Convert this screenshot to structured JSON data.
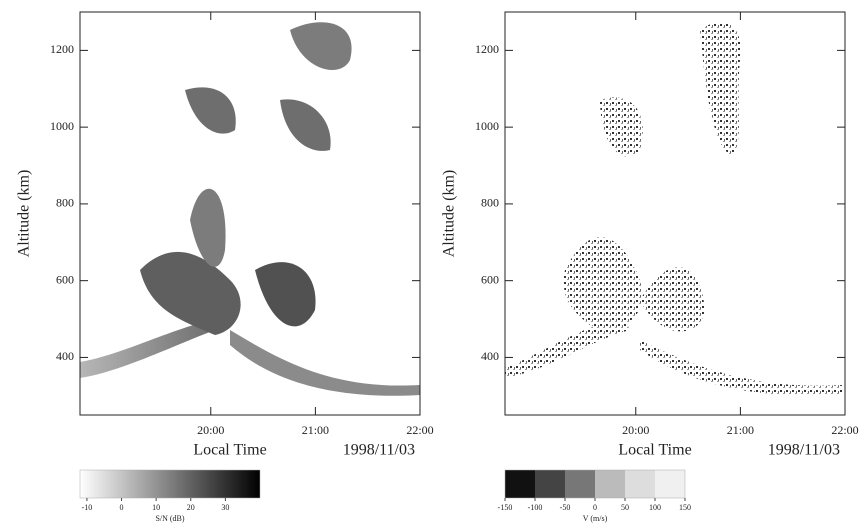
{
  "chart_data": [
    {
      "type": "heatmap",
      "ylabel": "Altitude (km)",
      "xlabel": "Local Time",
      "date": "1998/11/03",
      "xlim": [
        18.75,
        22
      ],
      "xticks": [
        {
          "value": 20,
          "label": "20:00"
        },
        {
          "value": 21,
          "label": "21:00"
        },
        {
          "value": 22,
          "label": "22:00"
        }
      ],
      "ylim": [
        250,
        1300
      ],
      "yticks": [
        400,
        600,
        800,
        1000,
        1200
      ],
      "colorbar": {
        "label": "S/N (dB)",
        "lim": [
          -12,
          40
        ],
        "ticks": [
          -10,
          0,
          10,
          20,
          30
        ],
        "colors": [
          "#ffffff",
          "#000000"
        ]
      }
    },
    {
      "type": "heatmap",
      "ylabel": "Altitude (km)",
      "xlabel": "Local Time",
      "date": "1998/11/03",
      "xlim": [
        18.75,
        22
      ],
      "xticks": [
        {
          "value": 20,
          "label": "20:00"
        },
        {
          "value": 21,
          "label": "21:00"
        },
        {
          "value": 22,
          "label": "22:00"
        }
      ],
      "ylim": [
        250,
        1300
      ],
      "yticks": [
        400,
        600,
        800,
        1000,
        1200
      ],
      "colorbar": {
        "label": "V (m/s)",
        "lim": [
          -150,
          150
        ],
        "ticks": [
          -150,
          -100,
          -50,
          0,
          50,
          100,
          150
        ],
        "colors": [
          "#111111",
          "#444444",
          "#777777",
          "#bbbbbb",
          "#dddddd",
          "#f0f0f0"
        ]
      }
    }
  ]
}
